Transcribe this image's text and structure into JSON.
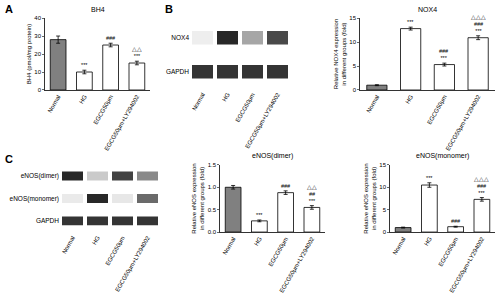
{
  "panel_labels": [
    "A",
    "B",
    "C"
  ],
  "chart_data": [
    {
      "type": "bar",
      "title": "BH4",
      "y_label": "BH4 (pmol/mg protein)",
      "categories": [
        "Normal",
        "HG",
        "EGCG50μm",
        "EGCG50μm+LY294002"
      ],
      "values": [
        28,
        10,
        25,
        15
      ],
      "errors": [
        2,
        1,
        1,
        1
      ],
      "colors": [
        "#808080",
        "#ffffff",
        "#ffffff",
        "#ffffff"
      ],
      "ylim": [
        0,
        40
      ],
      "yticks": [
        0,
        10,
        20,
        30,
        40
      ],
      "grid": false,
      "significance": [
        [],
        [
          "***"
        ],
        [
          "###"
        ],
        [
          "△△",
          "***"
        ]
      ]
    },
    {
      "type": "bar",
      "title": "NOX4",
      "y_label": "Relative NOX4 expression in different groups (fold)",
      "categories": [
        "Normal",
        "HG",
        "EGCG50μm",
        "EGCG50μm+LY294002"
      ],
      "values": [
        1,
        12.8,
        5.3,
        10.9
      ],
      "errors": [
        0.1,
        0.3,
        0.3,
        0.4
      ],
      "colors": [
        "#808080",
        "#ffffff",
        "#ffffff",
        "#ffffff"
      ],
      "ylim": [
        0,
        15
      ],
      "yticks": [
        0,
        5,
        10,
        15
      ],
      "grid": false,
      "significance": [
        [],
        [
          "***"
        ],
        [
          "###",
          "***"
        ],
        [
          "△△△",
          "###",
          "***"
        ]
      ]
    },
    {
      "type": "bar",
      "title": "eNOS(dimer)",
      "y_label": "Relative eNOS expression in different groups (fold)",
      "categories": [
        "Normal",
        "HG",
        "EGCG50μm",
        "EGCG50μm+LY294002"
      ],
      "values": [
        1.0,
        0.25,
        0.88,
        0.55
      ],
      "errors": [
        0.04,
        0.02,
        0.04,
        0.04
      ],
      "colors": [
        "#808080",
        "#ffffff",
        "#ffffff",
        "#ffffff"
      ],
      "ylim": [
        0,
        1.5
      ],
      "yticks": [
        {
          "value": 0,
          "label": "0.0"
        },
        {
          "value": 0.5,
          "label": "0.5"
        },
        {
          "value": 1,
          "label": "1.0"
        },
        {
          "value": 1.5,
          "label": "1.5"
        }
      ],
      "grid": false,
      "significance": [
        [],
        [
          "***"
        ],
        [
          "###"
        ],
        [
          "△△",
          "##",
          "***"
        ]
      ]
    },
    {
      "type": "bar",
      "title": "eNOS(monomer)",
      "y_label": "Relative eNOS expression in different groups (fold)",
      "categories": [
        "Normal",
        "HG",
        "EGCG50μm",
        "EGCG50μm+LY294002"
      ],
      "values": [
        1,
        10.5,
        1.2,
        7.3
      ],
      "errors": [
        0.1,
        0.5,
        0.1,
        0.4
      ],
      "colors": [
        "#808080",
        "#ffffff",
        "#ffffff",
        "#ffffff"
      ],
      "ylim": [
        0,
        15
      ],
      "yticks": [
        0,
        5,
        10,
        15
      ],
      "grid": false,
      "significance": [
        [],
        [
          "***"
        ],
        [
          "###"
        ],
        [
          "△△△",
          "###",
          "***"
        ]
      ]
    }
  ],
  "blots": [
    {
      "rows": [
        "NOX4",
        "GAPDH"
      ],
      "lanes": [
        "Normal",
        "HG",
        "EGCG50μm",
        "EGCG50μm+LY294002"
      ]
    },
    {
      "rows": [
        "eNOS(dimer)",
        "eNOS(monomer)",
        "GAPDH"
      ],
      "lanes": [
        "Normal",
        "HG",
        "EGCG50μm",
        "EGCG50μm+LY294002"
      ]
    }
  ]
}
